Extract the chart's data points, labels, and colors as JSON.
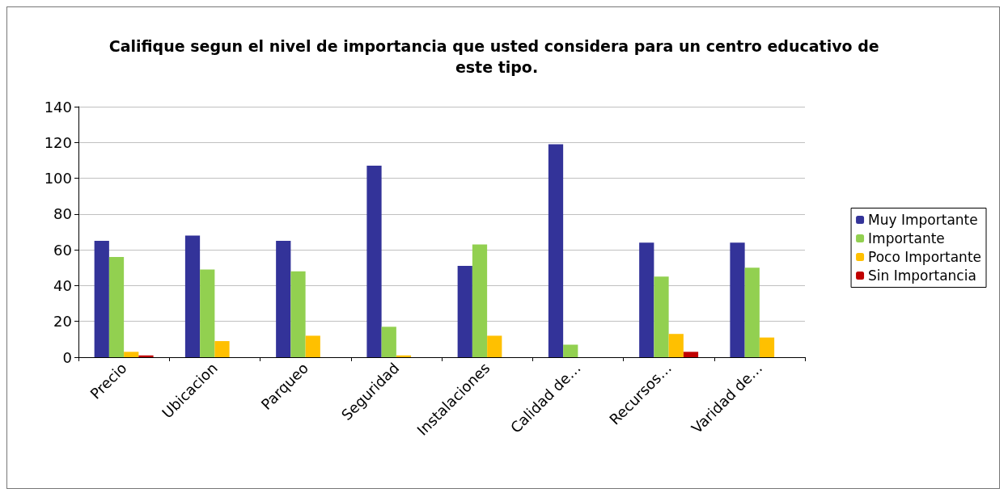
{
  "chart_data": {
    "type": "bar",
    "title": "Califique segun el nivel de importancia que usted considera para un centro educativo de este tipo.",
    "categories": [
      "Precio",
      "Ubicacion",
      "Parqueo",
      "Seguridad",
      "Instalaciones",
      "Calidad de…",
      "Recursos…",
      "Varidad de…"
    ],
    "series": [
      {
        "name": "Muy Importante",
        "color": "#333399",
        "values": [
          65,
          68,
          65,
          107,
          51,
          119,
          64,
          64
        ]
      },
      {
        "name": "Importante",
        "color": "#92d050",
        "values": [
          56,
          49,
          48,
          17,
          63,
          7,
          45,
          50
        ]
      },
      {
        "name": "Poco Importante",
        "color": "#ffc000",
        "values": [
          3,
          9,
          12,
          1,
          12,
          0,
          13,
          11
        ]
      },
      {
        "name": "Sin Importancia",
        "color": "#c00000",
        "values": [
          1,
          0,
          0,
          0,
          0,
          0,
          3,
          0
        ]
      }
    ],
    "ylim": [
      0,
      140
    ],
    "yticks": [
      0,
      20,
      40,
      60,
      80,
      100,
      120,
      140
    ],
    "grid": "y",
    "legend": "right"
  }
}
